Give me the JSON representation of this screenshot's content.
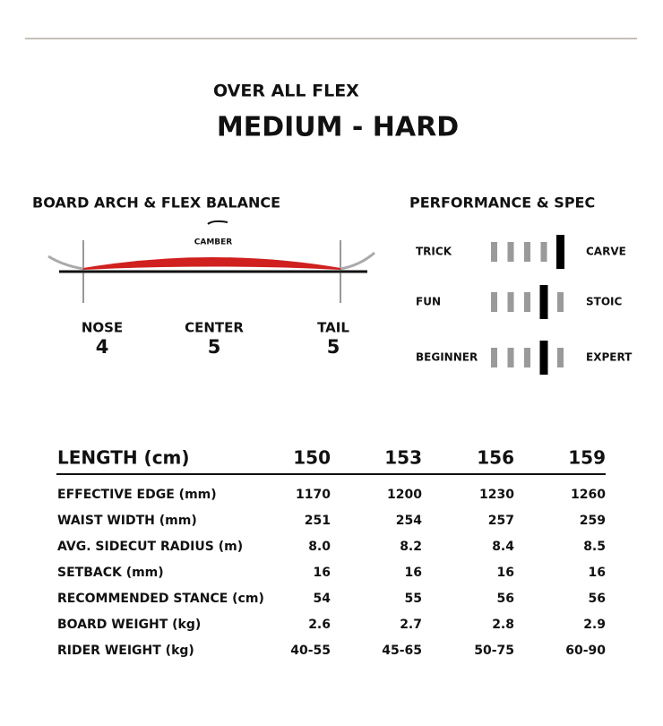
{
  "header": {
    "label": "OVER ALL FLEX",
    "flex": "MEDIUM - HARD"
  },
  "board": {
    "title": "BOARD ARCH & FLEX BALANCE",
    "profile": "CAMBER",
    "zones": [
      {
        "name": "NOSE",
        "value": "4"
      },
      {
        "name": "CENTER",
        "value": "5"
      },
      {
        "name": "TAIL",
        "value": "5"
      }
    ]
  },
  "performance": {
    "title": "PERFORMANCE & SPEC",
    "scales": [
      {
        "left": "TRICK",
        "right": "CARVE",
        "position": 5
      },
      {
        "left": "FUN",
        "right": "STOIC",
        "position": 4
      },
      {
        "left": "BEGINNER",
        "right": "EXPERT",
        "position": 4
      }
    ]
  },
  "table": {
    "header": [
      "LENGTH (cm)",
      "150",
      "153",
      "156",
      "159"
    ],
    "rows": [
      [
        "EFFECTIVE EDGE (mm)",
        "1170",
        "1200",
        "1230",
        "1260"
      ],
      [
        "WAIST WIDTH (mm)",
        "251",
        "254",
        "257",
        "259"
      ],
      [
        "AVG. SIDECUT RADIUS (m)",
        "8.0",
        "8.2",
        "8.4",
        "8.5"
      ],
      [
        "SETBACK (mm)",
        "16",
        "16",
        "16",
        "16"
      ],
      [
        "RECOMMENDED STANCE (cm)",
        "54",
        "55",
        "56",
        "56"
      ],
      [
        "BOARD WEIGHT (kg)",
        "2.6",
        "2.7",
        "2.8",
        "2.9"
      ],
      [
        "RIDER WEIGHT (kg)",
        "40-55",
        "45-65",
        "50-75",
        "60-90"
      ]
    ]
  }
}
